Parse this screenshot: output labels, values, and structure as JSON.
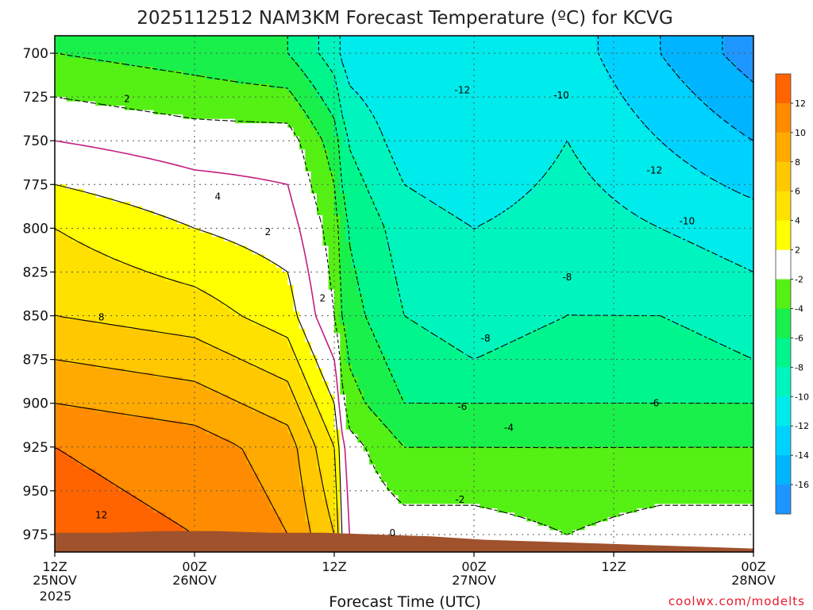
{
  "chart_data": {
    "type": "heatmap",
    "title": "2025112512 NAM3KM Forecast Temperature (ºC) for KCVG",
    "xlabel": "Forecast Time (UTC)",
    "ylabel": "",
    "credit": "coolwx.com/modelts",
    "y_axis": {
      "units": "hPa",
      "inverted": true,
      "range": [
        985,
        690
      ],
      "ticks": [
        700,
        725,
        750,
        775,
        800,
        825,
        850,
        875,
        900,
        925,
        950,
        975
      ]
    },
    "x_axis": {
      "units": "hours since 2025-11-25 12Z",
      "range": [
        0,
        60
      ],
      "year_label": "2025",
      "ticks": [
        {
          "hour": 0,
          "line1": "12Z",
          "line2": "25NOV"
        },
        {
          "hour": 12,
          "line1": "00Z",
          "line2": "26NOV"
        },
        {
          "hour": 24,
          "line1": "12Z",
          "line2": ""
        },
        {
          "hour": 36,
          "line1": "00Z",
          "line2": "27NOV"
        },
        {
          "hour": 48,
          "line1": "12Z",
          "line2": ""
        },
        {
          "hour": 60,
          "line1": "00Z",
          "line2": "28NOV"
        }
      ]
    },
    "colorbar": {
      "levels": [
        -18,
        -16,
        -14,
        -12,
        -10,
        -8,
        -6,
        -4,
        -2,
        2,
        4,
        6,
        8,
        10,
        12,
        14
      ],
      "labels": [
        "-16",
        "-14",
        "-12",
        "-10",
        "-8",
        "-6",
        "-4",
        "-2",
        "2",
        "4",
        "6",
        "8",
        "10",
        "12"
      ],
      "colors": [
        "#1e96ff",
        "#00b4ff",
        "#00d2ff",
        "#00ebeb",
        "#00f5be",
        "#00f58c",
        "#19f04b",
        "#55f014",
        "#ffffff",
        "#ffff00",
        "#ffe100",
        "#ffc800",
        "#ffaa00",
        "#ff8c00",
        "#ff6400"
      ]
    },
    "stations_surface_hpa": [
      974,
      974,
      973,
      973,
      974,
      974,
      975,
      976,
      978,
      979,
      980,
      981,
      982,
      983
    ],
    "profiles": [
      {
        "hour": 0,
        "temps": [
          -4,
          0,
          4,
          6,
          8,
          10,
          12,
          13
        ]
      },
      {
        "hour": 12,
        "temps": [
          -5,
          -1,
          2,
          5,
          7,
          9,
          11,
          12
        ]
      },
      {
        "hour": 20,
        "temps": [
          -6,
          -1,
          1,
          3,
          5,
          7,
          9,
          10
        ]
      },
      {
        "hour": 24,
        "temps": [
          -9,
          -5,
          -3,
          -2,
          0,
          2,
          4,
          6
        ]
      },
      {
        "hour": 25,
        "temps": [
          -11,
          -8,
          -6,
          -5,
          -4,
          -3,
          -1,
          0
        ]
      },
      {
        "hour": 30,
        "temps": [
          -12,
          -11,
          -9,
          -8,
          -7,
          -6,
          -4,
          -1
        ]
      },
      {
        "hour": 36,
        "temps": [
          -12,
          -12,
          -10,
          -9,
          -8,
          -6,
          -4,
          -1
        ]
      },
      {
        "hour": 44,
        "temps": [
          -11,
          -10,
          -9,
          -8,
          -7,
          -6,
          -4,
          -2
        ]
      },
      {
        "hour": 52,
        "temps": [
          -14,
          -12,
          -10,
          -8,
          -7,
          -6,
          -4,
          -1
        ]
      },
      {
        "hour": 60,
        "temps": [
          -17,
          -14,
          -11,
          -9,
          -8,
          -6,
          -4,
          -1
        ]
      }
    ],
    "profile_levels_hpa": [
      700,
      750,
      800,
      850,
      875,
      900,
      925,
      975
    ],
    "contour_labels": [
      {
        "text": "2",
        "hour": 6.2,
        "hpa": 726
      },
      {
        "text": "4",
        "hour": 14.0,
        "hpa": 782
      },
      {
        "text": "2",
        "hour": 18.3,
        "hpa": 802
      },
      {
        "text": "2",
        "hour": 23.0,
        "hpa": 840
      },
      {
        "text": "8",
        "hour": 4.0,
        "hpa": 851
      },
      {
        "text": "12",
        "hour": 4.0,
        "hpa": 964
      },
      {
        "text": "-12",
        "hour": 35.0,
        "hpa": 721
      },
      {
        "text": "-10",
        "hour": 43.5,
        "hpa": 724
      },
      {
        "text": "-12",
        "hour": 51.5,
        "hpa": 767
      },
      {
        "text": "-10",
        "hour": 54.3,
        "hpa": 796
      },
      {
        "text": "-8",
        "hour": 44.0,
        "hpa": 828
      },
      {
        "text": "-8",
        "hour": 37.0,
        "hpa": 863
      },
      {
        "text": "-6",
        "hour": 35.0,
        "hpa": 902
      },
      {
        "text": "-6",
        "hour": 51.5,
        "hpa": 900
      },
      {
        "text": "-4",
        "hour": 39.0,
        "hpa": 914
      },
      {
        "text": "-2",
        "hour": 34.8,
        "hpa": 955
      },
      {
        "text": "0",
        "hour": 29.0,
        "hpa": 974
      }
    ]
  }
}
